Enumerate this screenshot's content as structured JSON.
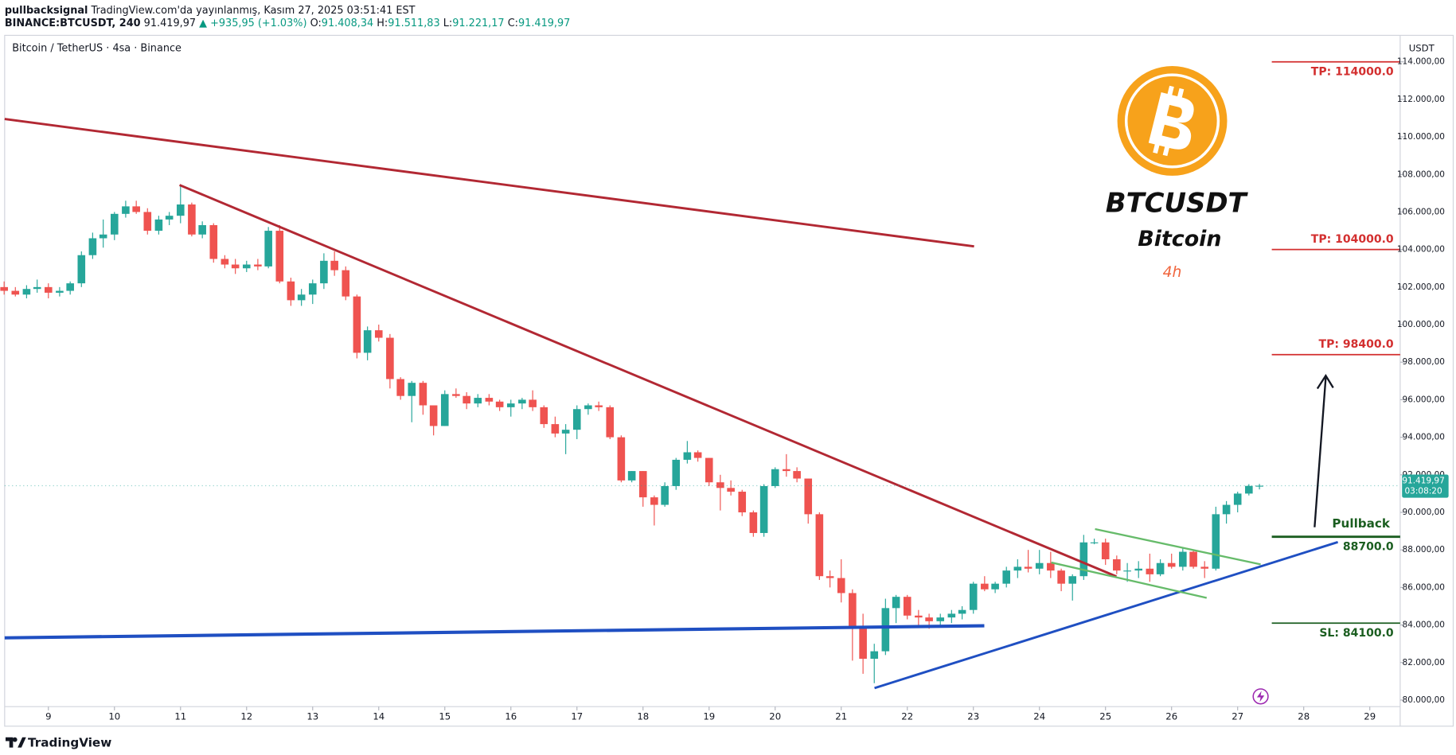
{
  "header": {
    "author": "pullbacksignal",
    "published": "TradingView.com'da yayınlanmış, Kasım 27, 2025 03:51:41 EST",
    "symbol": "BINANCE:BTCUSDT, 240",
    "price": "91.419,97",
    "change": "▲ +935,95 (+1.03%)",
    "ohlc": [
      {
        "label": "O:",
        "value": "91.408,34"
      },
      {
        "label": "H:",
        "value": "91.511,83"
      },
      {
        "label": "L:",
        "value": "91.221,17"
      },
      {
        "label": "C:",
        "value": "91.419,97"
      }
    ]
  },
  "footer": "TradingView",
  "overlay": {
    "ticker": "BTCUSDT",
    "name": "Bitcoin",
    "timeframe": "4h"
  },
  "chart_data": {
    "type": "candlestick",
    "title": "Bitcoin / TetherUS · 4sa · Binance",
    "currency": "USDT",
    "last_price_label": "91.419,97",
    "countdown": "03:08:20",
    "up_color": "#26a69a",
    "down_color": "#ef5350",
    "xlim": [
      8.338,
      29.46
    ],
    "xticks": [
      9,
      10,
      11,
      12,
      13,
      14,
      15,
      16,
      17,
      18,
      19,
      20,
      21,
      22,
      23,
      24,
      25,
      26,
      27,
      28,
      29
    ],
    "ylim": [
      79650,
      115410
    ],
    "yticks": [
      {
        "value": 80000,
        "label": "80.000,00"
      },
      {
        "value": 82000,
        "label": "82.000,00"
      },
      {
        "value": 84000,
        "label": "84.000,00"
      },
      {
        "value": 86000,
        "label": "86.000,00"
      },
      {
        "value": 88000,
        "label": "88.000,00"
      },
      {
        "value": 90000,
        "label": "90.000,00"
      },
      {
        "value": 92000,
        "label": "92.000,00"
      },
      {
        "value": 94000,
        "label": "94.000,00"
      },
      {
        "value": 96000,
        "label": "96.000,00"
      },
      {
        "value": 98000,
        "label": "98.000,00"
      },
      {
        "value": 100000,
        "label": "100.000,00"
      },
      {
        "value": 102000,
        "label": "102.000,00"
      },
      {
        "value": 104000,
        "label": "104.000,00"
      },
      {
        "value": 106000,
        "label": "106.000,00"
      },
      {
        "value": 108000,
        "label": "108.000,00"
      },
      {
        "value": 110000,
        "label": "110.000,00"
      },
      {
        "value": 112000,
        "label": "112.000,00"
      },
      {
        "value": 114000,
        "label": "114.000,00"
      }
    ],
    "x": [
      8.33,
      8.5,
      8.67,
      8.83,
      9,
      9.17,
      9.33,
      9.5,
      9.67,
      9.83,
      10,
      10.17,
      10.33,
      10.5,
      10.67,
      10.83,
      11,
      11.17,
      11.33,
      11.5,
      11.67,
      11.83,
      12,
      12.17,
      12.33,
      12.5,
      12.67,
      12.83,
      13,
      13.17,
      13.33,
      13.5,
      13.67,
      13.83,
      14,
      14.17,
      14.33,
      14.5,
      14.67,
      14.83,
      15,
      15.17,
      15.33,
      15.5,
      15.67,
      15.83,
      16,
      16.17,
      16.33,
      16.5,
      16.67,
      16.83,
      17,
      17.17,
      17.33,
      17.5,
      17.67,
      17.83,
      18,
      18.17,
      18.33,
      18.5,
      18.67,
      18.83,
      19,
      19.17,
      19.33,
      19.5,
      19.67,
      19.83,
      20,
      20.17,
      20.33,
      20.5,
      20.67,
      20.83,
      21,
      21.17,
      21.33,
      21.5,
      21.67,
      21.83,
      22,
      22.17,
      22.33,
      22.5,
      22.67,
      22.83,
      23,
      23.17,
      23.33,
      23.5,
      23.67,
      23.83,
      24,
      24.17,
      24.33,
      24.5,
      24.67,
      24.83,
      25,
      25.17,
      25.33,
      25.5,
      25.67,
      25.83,
      26,
      26.17,
      26.33,
      26.5,
      26.67,
      26.83,
      27,
      27.17,
      27.33
    ],
    "open": [
      102000,
      101800,
      101600,
      101900,
      102000,
      101700,
      101800,
      102200,
      103700,
      104600,
      104800,
      105900,
      106300,
      106000,
      105000,
      105600,
      105800,
      106400,
      104800,
      105300,
      103500,
      103200,
      103000,
      103200,
      103100,
      105000,
      102300,
      101300,
      101600,
      102200,
      103400,
      102900,
      101500,
      98500,
      99700,
      99300,
      97100,
      96200,
      96900,
      95700,
      94600,
      96300,
      96200,
      95800,
      96100,
      95900,
      95600,
      95800,
      96000,
      95600,
      94700,
      94200,
      94400,
      95500,
      95700,
      95600,
      94000,
      91700,
      92200,
      90800,
      90400,
      91400,
      92800,
      93200,
      92900,
      91600,
      91300,
      91100,
      90000,
      88900,
      91400,
      92300,
      92200,
      91800,
      89900,
      86600,
      86500,
      85700,
      83900,
      82200,
      82600,
      84900,
      85500,
      84500,
      84400,
      84200,
      84400,
      84600,
      84800,
      86200,
      85900,
      86200,
      86900,
      87100,
      87000,
      87300,
      86900,
      86200,
      86600,
      88400,
      88400,
      87500,
      86900,
      86900,
      87000,
      86700,
      87300,
      87100,
      87900,
      87100,
      87000,
      89900,
      90400,
      91000,
      91408.34
    ],
    "high": [
      102300,
      102000,
      102100,
      102400,
      102200,
      102000,
      102300,
      103900,
      104900,
      105600,
      106000,
      106600,
      106600,
      106200,
      105800,
      106000,
      107400,
      106500,
      105500,
      105400,
      103700,
      103500,
      103400,
      103500,
      105200,
      105300,
      102500,
      101900,
      102400,
      103800,
      103900,
      103100,
      101600,
      99900,
      100000,
      99500,
      97200,
      97000,
      97000,
      95700,
      96500,
      96600,
      96400,
      96300,
      96300,
      96000,
      96000,
      96100,
      96500,
      95700,
      95100,
      94700,
      95700,
      95800,
      95900,
      95700,
      94100,
      92200,
      92200,
      90900,
      91600,
      92900,
      93800,
      93300,
      92900,
      92000,
      91700,
      91200,
      90100,
      91500,
      92400,
      93100,
      92400,
      91800,
      90000,
      86900,
      87500,
      85900,
      84600,
      83000,
      85400,
      85600,
      85600,
      84800,
      84600,
      84600,
      84800,
      85000,
      86300,
      86600,
      86300,
      87100,
      87500,
      88000,
      88000,
      87900,
      87000,
      86700,
      88800,
      88600,
      88600,
      87700,
      87300,
      87400,
      87800,
      87500,
      87800,
      88100,
      88000,
      87400,
      90300,
      90600,
      91100,
      91500,
      91511.83
    ],
    "low": [
      101600,
      101500,
      101400,
      101700,
      101400,
      101500,
      101600,
      102000,
      103500,
      104100,
      104500,
      105700,
      105900,
      104800,
      104800,
      105300,
      105400,
      104700,
      104600,
      103300,
      103000,
      102700,
      102800,
      102900,
      103000,
      102200,
      101000,
      101000,
      101100,
      101900,
      102600,
      101300,
      98200,
      98100,
      99100,
      96600,
      96000,
      94800,
      95200,
      94100,
      94600,
      96100,
      95500,
      95600,
      95700,
      95400,
      95100,
      95500,
      95400,
      94500,
      94000,
      93100,
      93900,
      95200,
      95400,
      93900,
      91600,
      91600,
      90300,
      89300,
      90300,
      91200,
      92600,
      92700,
      91400,
      90100,
      90900,
      89800,
      88700,
      88700,
      91300,
      91900,
      91600,
      89400,
      86400,
      86000,
      85200,
      82100,
      81400,
      80900,
      82400,
      84100,
      84300,
      84000,
      83800,
      83900,
      84100,
      84300,
      84600,
      85800,
      85700,
      86000,
      86500,
      86800,
      86700,
      86500,
      85800,
      85300,
      86400,
      88300,
      87200,
      86700,
      86300,
      86500,
      86300,
      86600,
      87000,
      86900,
      87000,
      86500,
      86900,
      89400,
      90000,
      90900,
      91221.17
    ],
    "close": [
      101800,
      101600,
      101900,
      102000,
      101700,
      101800,
      102200,
      103700,
      104600,
      104800,
      105900,
      106300,
      106000,
      105000,
      105600,
      105800,
      106400,
      104800,
      105300,
      103500,
      103200,
      103000,
      103200,
      103100,
      105000,
      102300,
      101300,
      101600,
      102200,
      103400,
      102900,
      101500,
      98500,
      99700,
      99300,
      97100,
      96200,
      96900,
      95700,
      94600,
      96300,
      96200,
      95800,
      96100,
      95900,
      95600,
      95800,
      96000,
      95600,
      94700,
      94200,
      94400,
      95500,
      95700,
      95600,
      94000,
      91700,
      92200,
      90800,
      90400,
      91400,
      92800,
      93200,
      92900,
      91600,
      91300,
      91100,
      90000,
      88900,
      91400,
      92300,
      92200,
      91800,
      89900,
      86600,
      86500,
      85700,
      83900,
      82200,
      82600,
      84900,
      85500,
      84500,
      84400,
      84200,
      84400,
      84600,
      84800,
      86200,
      85900,
      86200,
      86900,
      87100,
      87000,
      87300,
      86900,
      86200,
      86600,
      88400,
      88400,
      87500,
      86900,
      86900,
      87000,
      86700,
      87300,
      87100,
      87900,
      87100,
      87000,
      89900,
      90400,
      91000,
      91408.34,
      91419.97
    ],
    "levels": [
      {
        "label": "TP: 114000.0",
        "value": 114000,
        "color": "#d32f2f",
        "position": "below"
      },
      {
        "label": "TP: 104000.0",
        "value": 104000,
        "color": "#d32f2f",
        "position": "above"
      },
      {
        "label": "TP: 98400.0",
        "value": 98400,
        "color": "#d32f2f",
        "position": "above"
      },
      {
        "title": "Pullback",
        "label": "88700.0",
        "value": 88700,
        "color": "#1b5e20",
        "position": "below"
      },
      {
        "label": "SL: 84100.0",
        "value": 84100,
        "color": "#1b5e20",
        "position": "below"
      }
    ]
  }
}
